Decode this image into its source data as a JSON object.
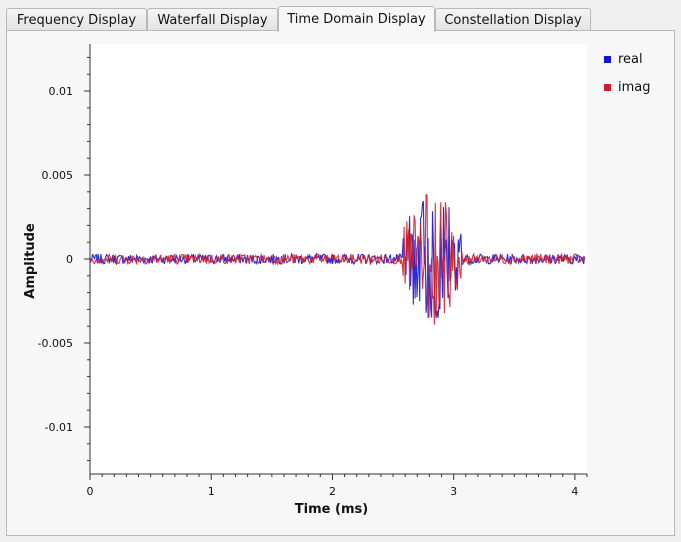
{
  "tabs": [
    {
      "label": "Frequency Display",
      "active": false
    },
    {
      "label": "Waterfall Display",
      "active": false
    },
    {
      "label": "Time Domain Display",
      "active": true
    },
    {
      "label": "Constellation Display",
      "active": false
    }
  ],
  "legend": [
    {
      "label": "real",
      "color": "#1414d2"
    },
    {
      "label": "imag",
      "color": "#d21e28"
    }
  ],
  "chart_data": {
    "type": "line",
    "xlabel": "Time (ms)",
    "ylabel": "Amplitude",
    "xlim": [
      0,
      4.1
    ],
    "ylim": [
      -0.0128,
      0.0128
    ],
    "x_ticks": [
      0,
      1,
      2,
      3,
      4
    ],
    "x_tick_labels": [
      "0",
      "1",
      "2",
      "3",
      "4"
    ],
    "y_ticks": [
      0.01,
      0.005,
      0,
      -0.005,
      -0.01
    ],
    "y_tick_labels": [
      "0.01",
      "0.005",
      "0",
      "-0.005",
      "-0.01"
    ],
    "grid": false,
    "legend_position": "top-right",
    "noise_amplitude": 0.0003,
    "burst": {
      "x_start": 2.58,
      "x_end": 3.07,
      "peak_amplitude": 0.004
    },
    "series": [
      {
        "name": "real",
        "color": "#1414d2",
        "min": -0.0035,
        "max": 0.0037
      },
      {
        "name": "imag",
        "color": "#d21e28",
        "min": -0.0042,
        "max": 0.0041
      }
    ]
  }
}
